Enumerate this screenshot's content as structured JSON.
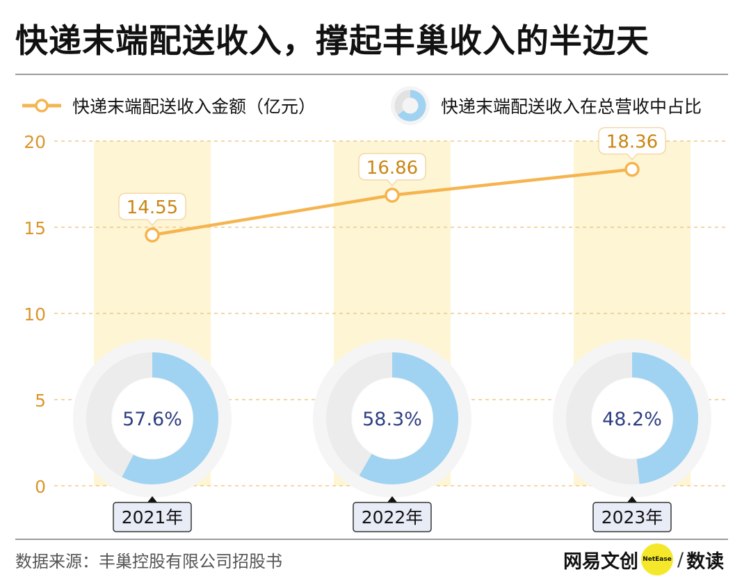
{
  "title": "快递末端配送收入，撑起丰巢收入的半边天",
  "legend": {
    "line_label": "快递末端配送收入金额（亿元）",
    "donut_label": "快递末端配送收入在总营收中占比"
  },
  "colors": {
    "line": "#f5b44f",
    "value_text": "#c98513",
    "axis_text": "#d9962a",
    "band": "#fdf5d3",
    "donut_fill": "#9fd3f1",
    "donut_track": "#ececec",
    "pct_text": "#2e3e82",
    "year_box": "#e8ecf6"
  },
  "chart_data": {
    "type": "line",
    "categories": [
      "2021年",
      "2022年",
      "2023年"
    ],
    "series": [
      {
        "name": "快递末端配送收入金额（亿元）",
        "values": [
          14.55,
          16.86,
          18.36
        ]
      }
    ],
    "value_labels": [
      "14.55",
      "16.86",
      "18.36"
    ],
    "yticks": [
      "0",
      "5",
      "10",
      "15",
      "20"
    ],
    "ylim": [
      0,
      20
    ],
    "grid": true,
    "secondary": {
      "type": "donut",
      "name": "快递末端配送收入在总营收中占比",
      "values": [
        57.6,
        58.3,
        48.2
      ],
      "labels": [
        "57.6%",
        "58.3%",
        "48.2%"
      ]
    }
  },
  "footer": {
    "source": "数据来源：丰巢控股有限公司招股书",
    "brand_main": "网易文创",
    "brand_badge": "NetEase",
    "brand_slash": "/",
    "brand_sub": "数读"
  }
}
